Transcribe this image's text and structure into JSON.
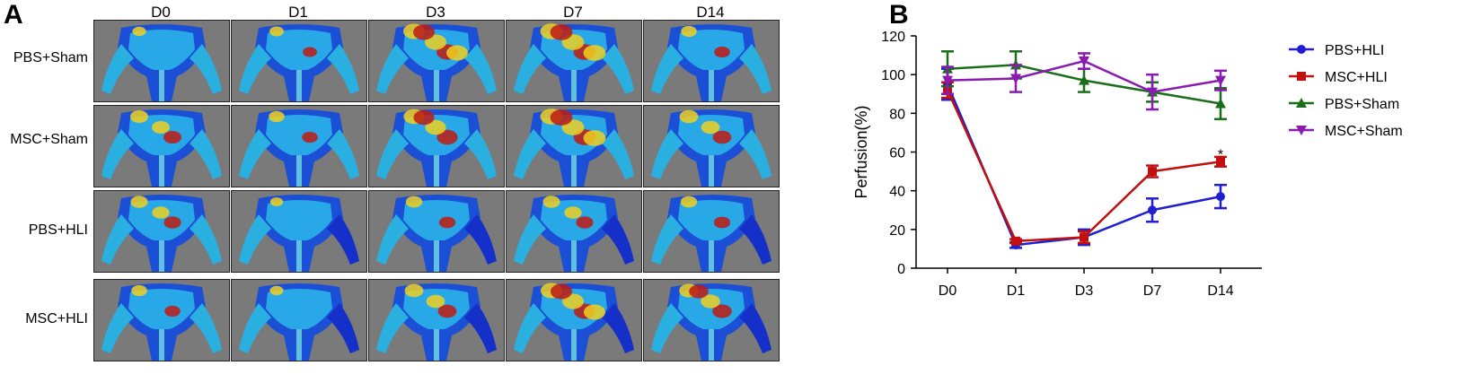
{
  "panel_a": {
    "letter": "A",
    "columns": [
      "D0",
      "D1",
      "D3",
      "D7",
      "D14"
    ],
    "rows": [
      "PBS+Sham",
      "MSC+Sham",
      "PBS+HLI",
      "MSC+HLI"
    ]
  },
  "panel_b": {
    "letter": "B"
  },
  "chart_data": {
    "type": "line",
    "title": "",
    "xlabel": "",
    "ylabel": "Perfusion(%)",
    "categories": [
      "D0",
      "D1",
      "D3",
      "D7",
      "D14"
    ],
    "ylim": [
      0,
      120
    ],
    "yticks": [
      0,
      20,
      40,
      60,
      80,
      100,
      120
    ],
    "grid": false,
    "legend_position": "right",
    "series": [
      {
        "name": "PBS+HLI",
        "color": "#1f1fd0",
        "marker": "circle",
        "values": [
          95,
          12,
          16,
          30,
          37
        ],
        "errors": [
          8,
          1.5,
          4,
          6,
          6
        ]
      },
      {
        "name": "MSC+HLI",
        "color": "#c01010",
        "marker": "square",
        "values": [
          92,
          14,
          16,
          50,
          55
        ],
        "errors": [
          4,
          1,
          3,
          3,
          2.5
        ]
      },
      {
        "name": "PBS+Sham",
        "color": "#1a6e1a",
        "marker": "triangle-up",
        "values": [
          103,
          105,
          97,
          91,
          85
        ],
        "errors": [
          9,
          7,
          6,
          5,
          8
        ]
      },
      {
        "name": "MSC+Sham",
        "color": "#8a1ab0",
        "marker": "triangle-down",
        "values": [
          97,
          98,
          107,
          91,
          97
        ],
        "errors": [
          7,
          7,
          4,
          9,
          5
        ]
      }
    ],
    "annotations": [
      {
        "text": "*",
        "category": "D14",
        "y": 60
      }
    ]
  }
}
